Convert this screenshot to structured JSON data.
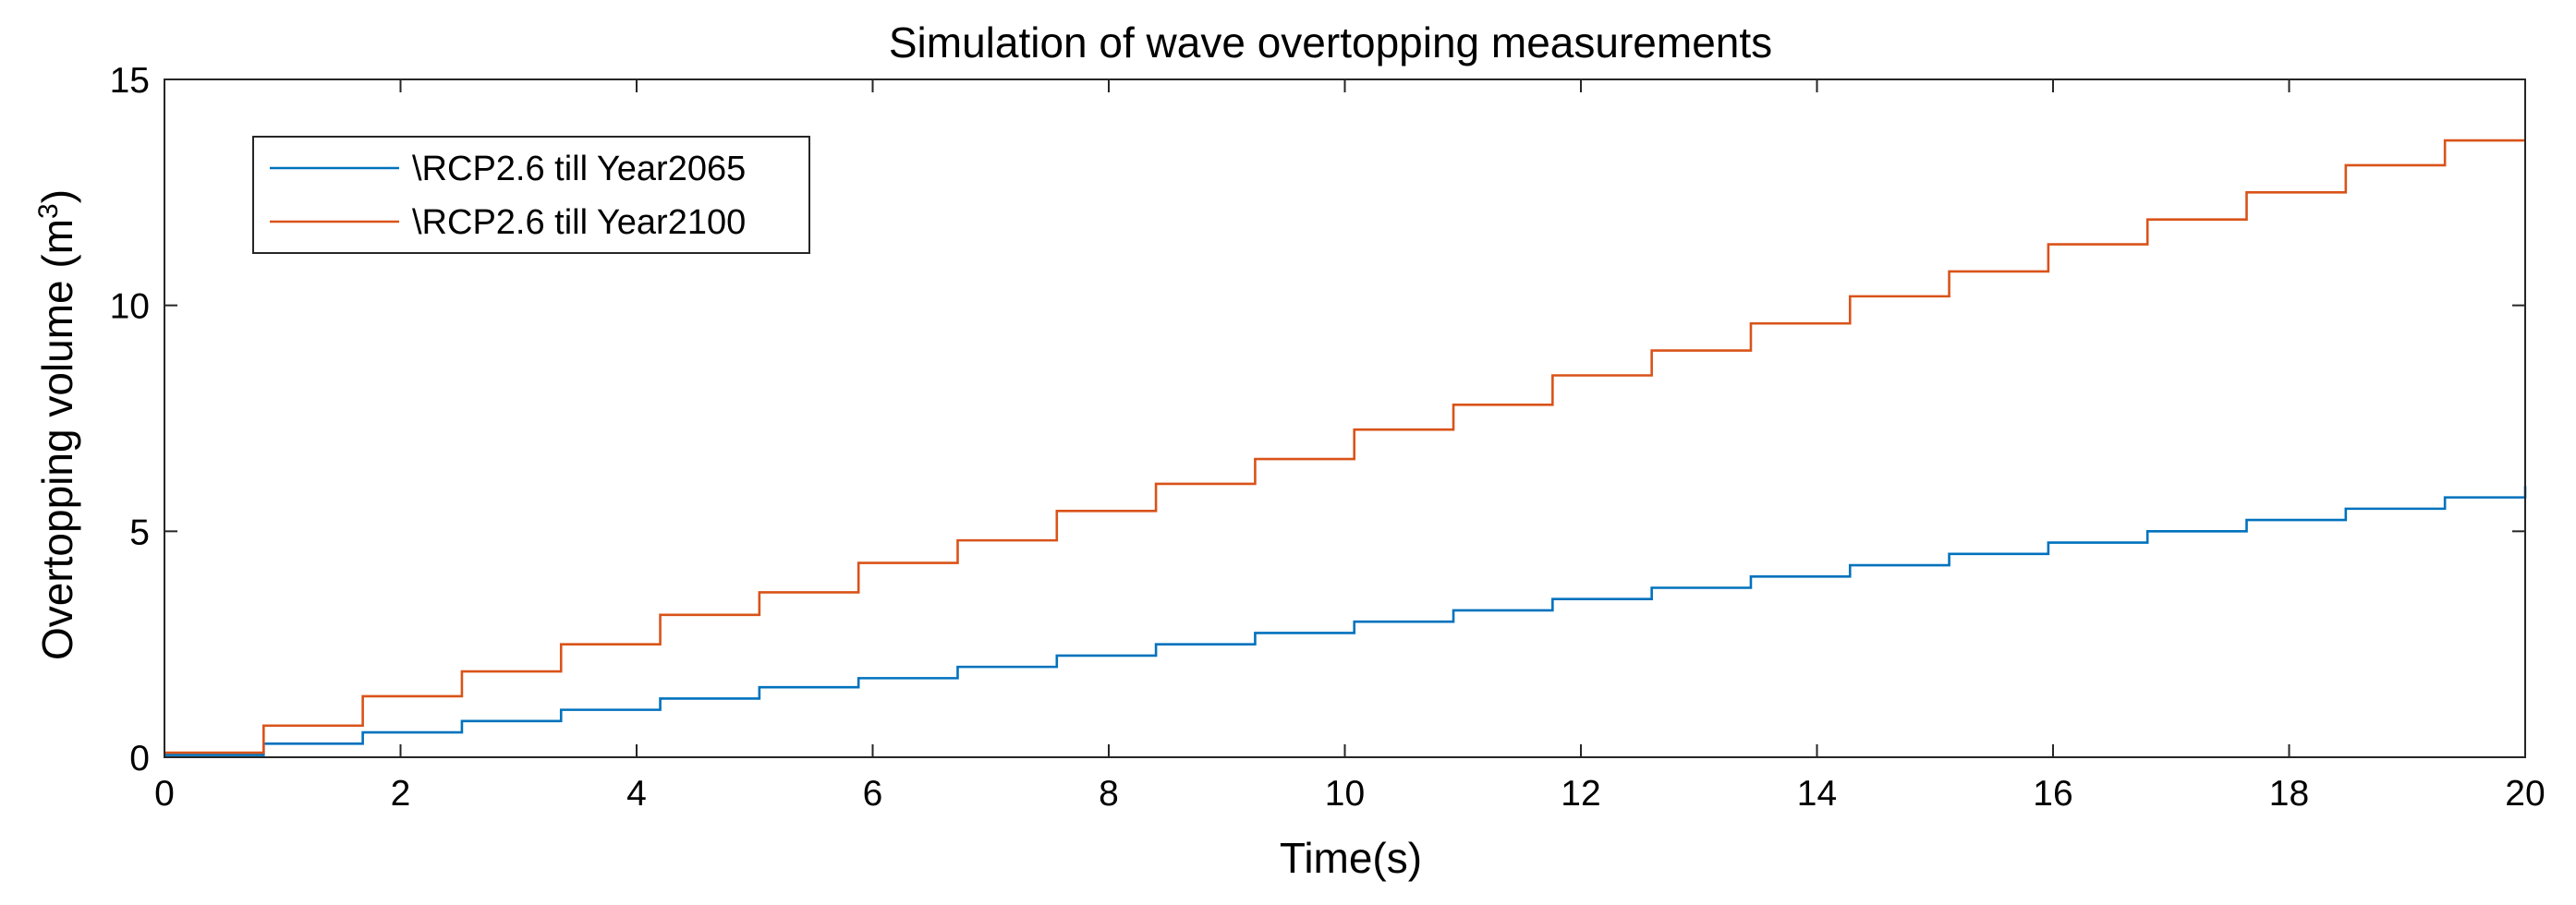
{
  "chart_data": {
    "type": "line",
    "step": true,
    "title": "Simulation of wave overtopping measurements",
    "xlabel": "Time(s)",
    "ylabel": "Overtopping volume (m",
    "ylabel_sup": "3",
    "ylabel_close": ")",
    "xlim": [
      0,
      20
    ],
    "ylim": [
      0,
      15
    ],
    "xticks": [
      "0",
      "2",
      "4",
      "6",
      "8",
      "10",
      "12",
      "14",
      "16",
      "18",
      "20"
    ],
    "yticks": [
      "0",
      "5",
      "10",
      "15"
    ],
    "grid": false,
    "legend_position": "top-left",
    "series": [
      {
        "name": "\\RCP2.6 till Year2065",
        "color": "#0072BD",
        "x": [
          0,
          0.84,
          1.68,
          2.52,
          3.36,
          4.2,
          5.04,
          5.88,
          6.72,
          7.56,
          8.4,
          9.24,
          10.08,
          10.92,
          11.76,
          12.6,
          13.44,
          14.28,
          15.12,
          15.96,
          16.8,
          17.64,
          18.48,
          19.32,
          20
        ],
        "y": [
          0.05,
          0.3,
          0.55,
          0.8,
          1.05,
          1.3,
          1.55,
          1.75,
          2.0,
          2.25,
          2.5,
          2.75,
          3.0,
          3.25,
          3.5,
          3.75,
          4.0,
          4.25,
          4.5,
          4.75,
          5.0,
          5.25,
          5.5,
          5.75,
          6.0
        ]
      },
      {
        "name": "\\RCP2.6 till Year2100",
        "color": "#D95319",
        "x": [
          0,
          0.84,
          1.68,
          2.52,
          3.36,
          4.2,
          5.04,
          5.88,
          6.72,
          7.56,
          8.4,
          9.24,
          10.08,
          10.92,
          11.76,
          12.6,
          13.44,
          14.28,
          15.12,
          15.96,
          16.8,
          17.64,
          18.48,
          19.32,
          20
        ],
        "y": [
          0.1,
          0.7,
          1.35,
          1.9,
          2.5,
          3.15,
          3.65,
          4.3,
          4.8,
          5.45,
          6.05,
          6.6,
          7.25,
          7.8,
          8.45,
          9.0,
          9.6,
          10.2,
          10.75,
          11.35,
          11.9,
          12.5,
          13.1,
          13.65,
          13.65
        ]
      }
    ]
  }
}
